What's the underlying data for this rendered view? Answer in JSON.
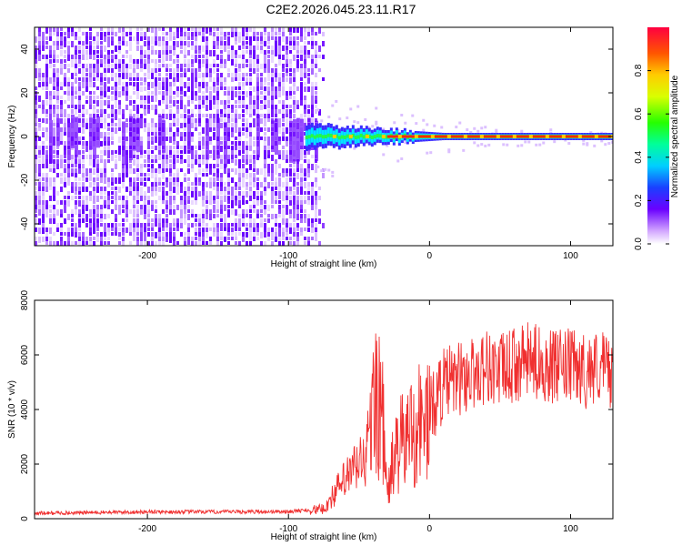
{
  "title": "C2E2.2026.045.23.11.R17",
  "colors": {
    "snr_line": "#f03030",
    "spectrogram_noise": "#6a00ff",
    "spectrogram_ridge": "#ff2a00",
    "spectrogram_glow": "#00e5ff"
  },
  "chart_data": [
    {
      "type": "heatmap",
      "xlabel": "Height of straight line (km)",
      "ylabel": "Frequency (Hz)",
      "xlim": [
        -280,
        130
      ],
      "ylim": [
        -50,
        50
      ],
      "x_ticks": [
        -200,
        -100,
        0,
        100
      ],
      "x_tick_labels": [
        "-200",
        "-100",
        "0",
        "100"
      ],
      "y_ticks": [
        -40,
        -20,
        0,
        20,
        40
      ],
      "y_tick_labels": [
        "-40",
        "-20",
        "0",
        "20",
        "40"
      ],
      "noise_region_x": [
        -280,
        -80
      ],
      "signal_start_x": -88,
      "ridge_frequency_hz": 0,
      "colorbar": {
        "label": "Normalized spectral amplitude",
        "range": [
          0,
          1
        ],
        "ticks": [
          0.0,
          0.2,
          0.4,
          0.6,
          0.8
        ],
        "tick_labels": [
          "0.0",
          "0.2",
          "0.4",
          "0.6",
          "0.8"
        ]
      }
    },
    {
      "type": "line",
      "xlabel": "Height of straight line (km)",
      "ylabel": "SNR (10 * v/v)",
      "xlim": [
        -280,
        130
      ],
      "ylim": [
        0,
        8000
      ],
      "x_ticks": [
        -200,
        -100,
        0,
        100
      ],
      "x_tick_labels": [
        "-200",
        "-100",
        "0",
        "100"
      ],
      "y_ticks": [
        0,
        2000,
        4000,
        6000,
        8000
      ],
      "y_tick_labels": [
        "0",
        "2000",
        "4000",
        "6000",
        "8000"
      ],
      "series": [
        {
          "x": [
            -280,
            -200,
            -150,
            -100,
            -75,
            -65,
            -55,
            -45,
            -37,
            -33,
            -30,
            -25,
            -20,
            -10,
            0,
            5,
            10,
            20,
            30,
            40,
            50,
            60,
            70,
            80,
            90,
            100,
            110,
            120,
            130
          ],
          "y": [
            200,
            250,
            250,
            260,
            350,
            1100,
            1700,
            2300,
            4800,
            3400,
            800,
            2300,
            2700,
            3400,
            3700,
            4500,
            4900,
            5100,
            5300,
            5600,
            5400,
            5600,
            5800,
            5700,
            5500,
            5600,
            5400,
            5600,
            5400
          ]
        }
      ]
    }
  ]
}
